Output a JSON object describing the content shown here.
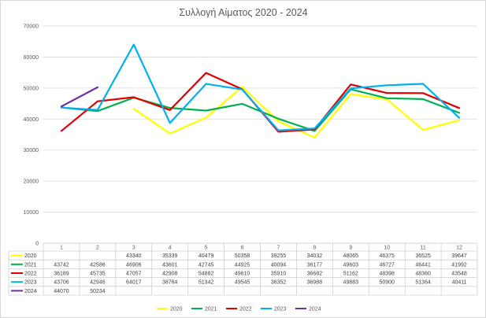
{
  "chart_data": {
    "type": "line",
    "title": "Συλλογή Αίματος 2020 - 2024",
    "categories": [
      "1",
      "2",
      "3",
      "4",
      "5",
      "6",
      "7",
      "8",
      "9",
      "10",
      "11",
      "12"
    ],
    "ylim": [
      0,
      70000
    ],
    "y_ticks": [
      0,
      10000,
      20000,
      30000,
      40000,
      50000,
      60000,
      70000
    ],
    "grid": true,
    "legend_position": "bottom",
    "data_table": true,
    "series": [
      {
        "name": "2020",
        "color": "#FFFF00",
        "values": [
          null,
          null,
          43340,
          35339,
          40479,
          50358,
          39255,
          34032,
          48065,
          46375,
          36525,
          39647
        ]
      },
      {
        "name": "2021",
        "color": "#00B050",
        "values": [
          43742,
          42586,
          46906,
          43601,
          42745,
          44925,
          40094,
          36177,
          49603,
          46727,
          46441,
          41992
        ]
      },
      {
        "name": "2022",
        "color": "#E00000",
        "values": [
          36189,
          45735,
          47057,
          42908,
          54882,
          49610,
          35910,
          36682,
          51162,
          48398,
          48360,
          43548
        ]
      },
      {
        "name": "2023",
        "color": "#00B0F0",
        "values": [
          43706,
          42946,
          64017,
          38764,
          51342,
          49545,
          36352,
          36988,
          49883,
          50900,
          51364,
          40411
        ]
      },
      {
        "name": "2024",
        "color": "#7030A0",
        "values": [
          44070,
          50234,
          null,
          null,
          null,
          null,
          null,
          null,
          null,
          null,
          null,
          null
        ]
      }
    ]
  }
}
